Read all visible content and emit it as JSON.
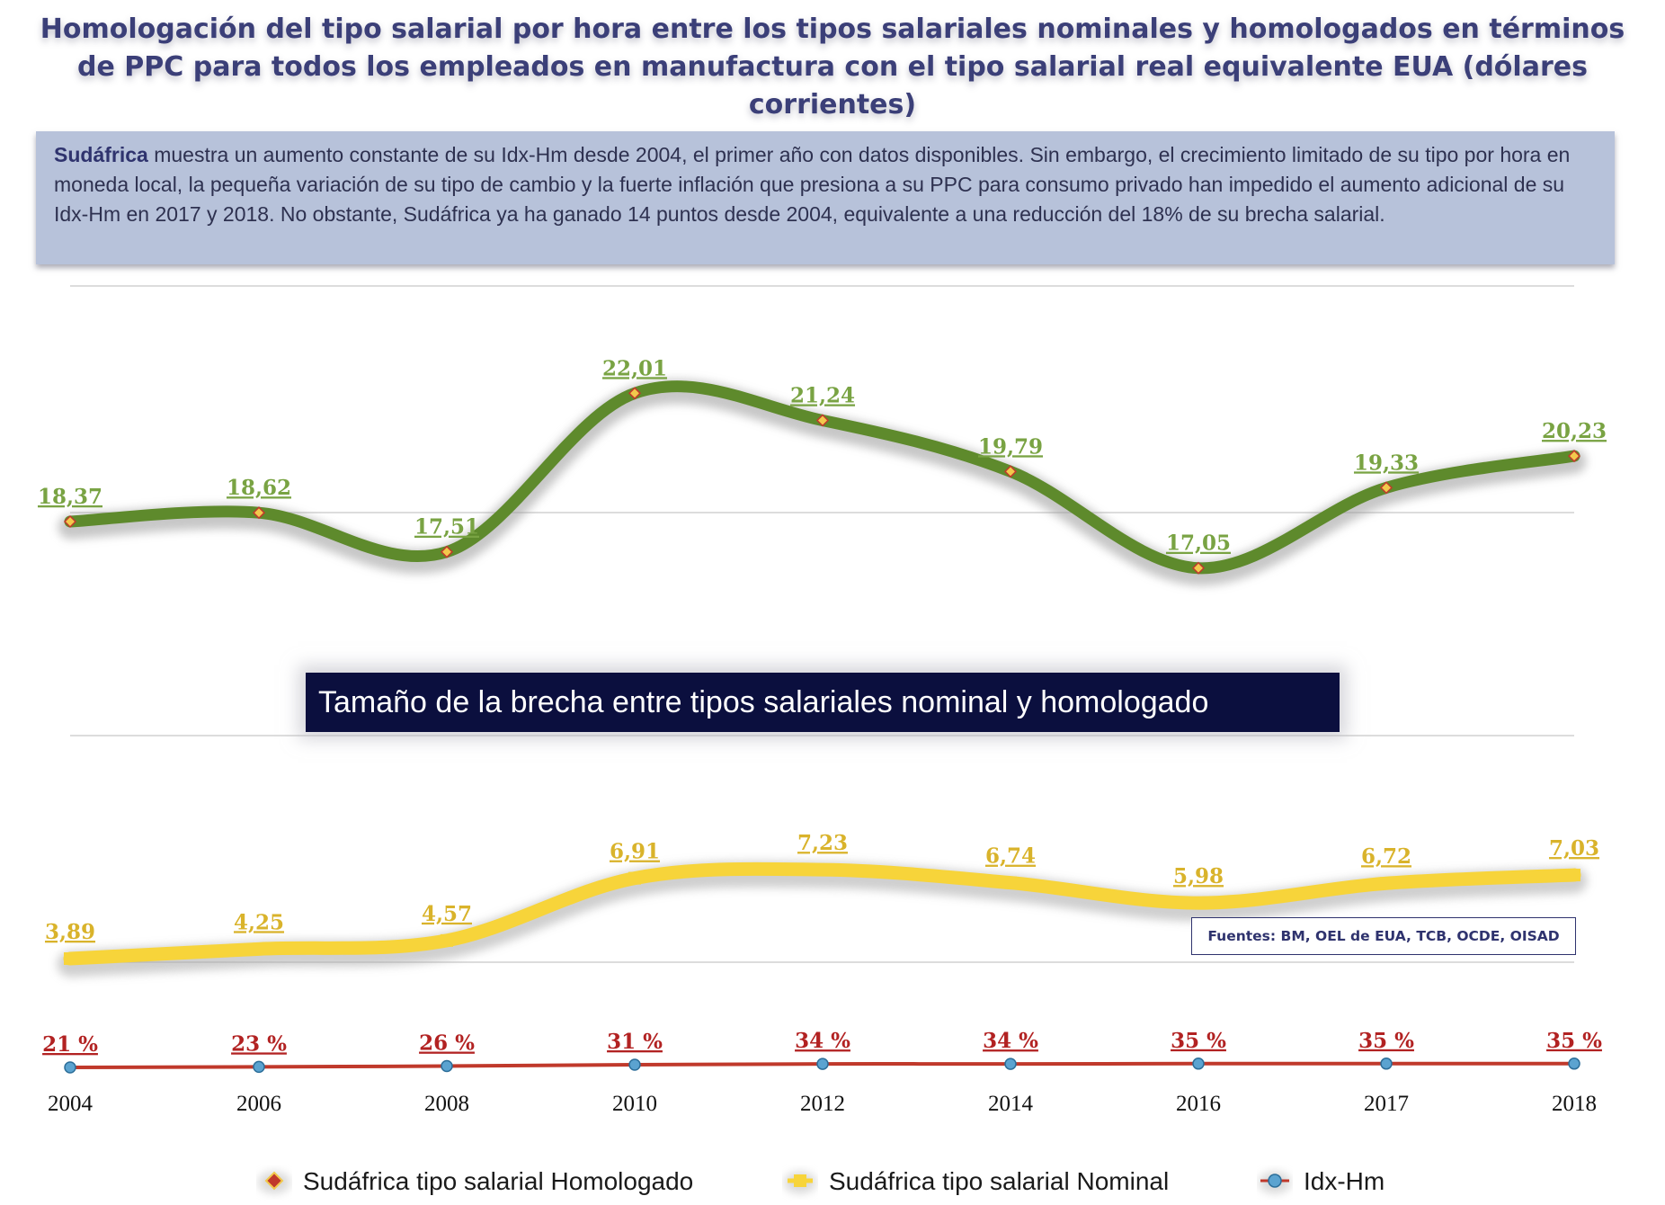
{
  "title": "Homologación del tipo salarial por hora entre los tipos salariales nominales y homologados en términos de PPC para todos los empleados en manufactura con el tipo salarial real equivalente EUA (dólares corrientes)",
  "note": {
    "country": "Sudáfrica",
    "text": " muestra un aumento constante de su Idx-Hm desde 2004, el primer año con datos disponibles. Sin embargo, el crecimiento limitado de su tipo por hora en moneda local, la pequeña variación de su tipo de cambio y la fuerte inflación que presiona a su PPC para consumo privado han impedido el aumento adicional de su Idx-Hm en 2017 y 2018. No obstante, Sudáfrica ya ha ganado 14 puntos desde 2004, equivalente a una reducción del 18% de su brecha salarial."
  },
  "banner": "Tamaño de la brecha entre tipos salariales nominal y homologado",
  "sources": "Fuentes: BM, OEL de EUA, TCB, OCDE, OISAD",
  "chart_data": {
    "type": "line",
    "categories": [
      "2004",
      "2006",
      "2008",
      "2010",
      "2012",
      "2014",
      "2016",
      "2017",
      "2018"
    ],
    "series": [
      {
        "name": "Sudáfrica tipo salarial Homologado",
        "color": "#5e8a2c",
        "values": [
          18.37,
          18.62,
          17.51,
          22.01,
          21.24,
          19.79,
          17.05,
          19.33,
          20.23
        ],
        "labels": [
          "18,37",
          "18,62",
          "17,51",
          "22,01",
          "21,24",
          "19,79",
          "17,05",
          "19,33",
          "20,23"
        ]
      },
      {
        "name": "Sudáfrica tipo salarial Nominal",
        "color": "#f7d43a",
        "values": [
          3.89,
          4.25,
          4.57,
          6.91,
          7.23,
          6.74,
          5.98,
          6.72,
          7.03
        ],
        "labels": [
          "3,89",
          "4,25",
          "4,57",
          "6,91",
          "7,23",
          "6,74",
          "5,98",
          "6,72",
          "7,03"
        ]
      },
      {
        "name": "Idx-Hm",
        "color": "#c0392b",
        "values": [
          21,
          23,
          26,
          31,
          34,
          34,
          35,
          35,
          35
        ],
        "labels": [
          "21 %",
          "23 %",
          "26 %",
          "31 %",
          "34 %",
          "34 %",
          "35 %",
          "35 %",
          "35 %"
        ]
      }
    ],
    "legend_position": "bottom"
  }
}
